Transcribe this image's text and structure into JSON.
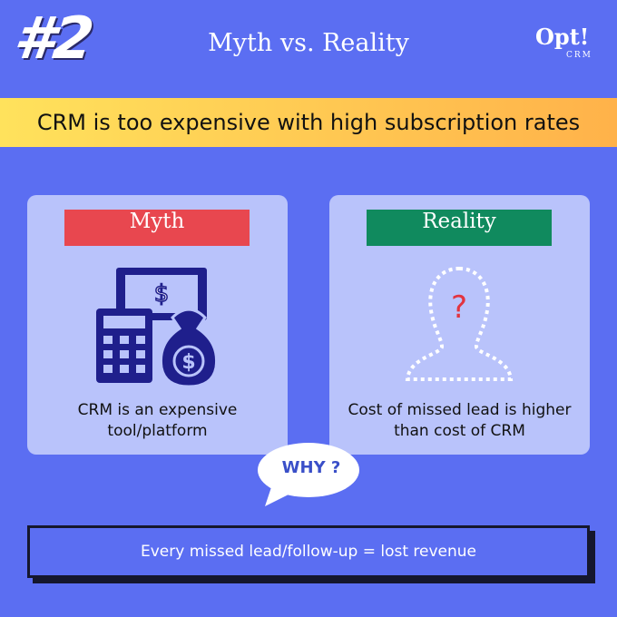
{
  "header": {
    "number": "#2",
    "title": "Myth vs. Reality",
    "logo": "Opt!",
    "logo_sub": "CRM"
  },
  "banner": "CRM is too expensive with high subscription rates",
  "myth": {
    "label": "Myth",
    "icon_symbol": "$",
    "text": "CRM is an expensive tool/platform"
  },
  "reality": {
    "label": "Reality",
    "icon_symbol": "?",
    "text": "Cost of missed lead is higher than cost of CRM"
  },
  "callout": "WHY ?",
  "footer": "Every missed lead/follow-up = lost revenue"
}
